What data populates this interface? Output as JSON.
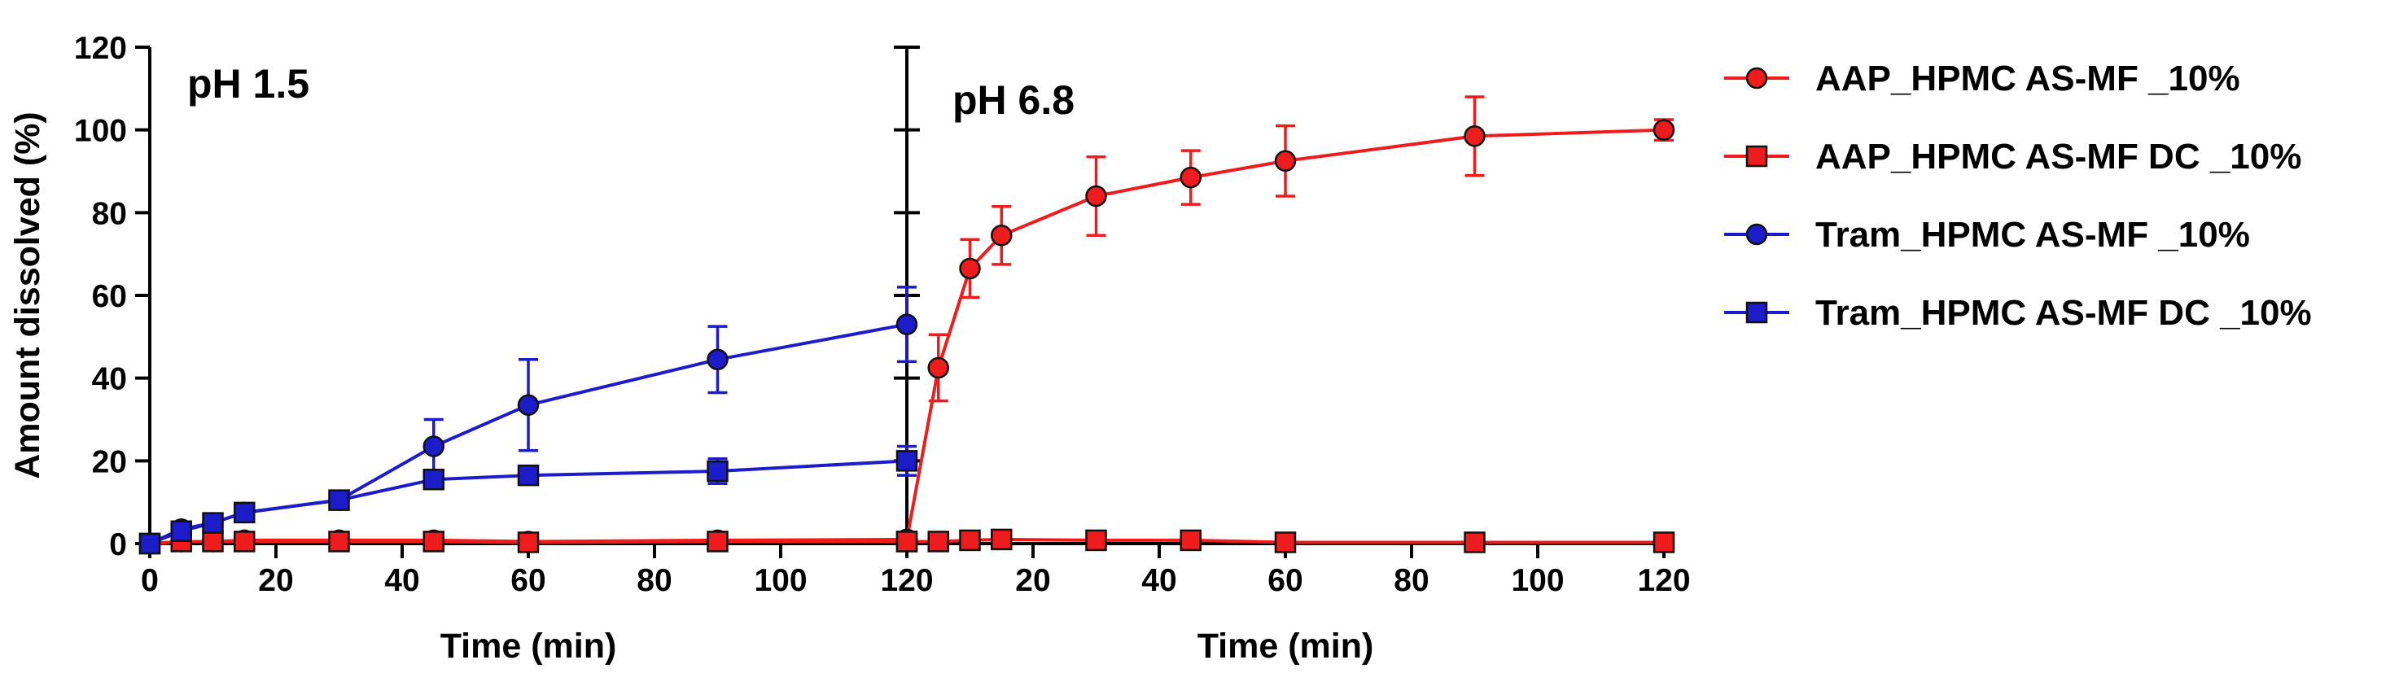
{
  "chart_data": {
    "type": "line",
    "ylabel": "Amount dissolved (%)",
    "ylim": [
      0,
      120
    ],
    "yticks": [
      0,
      20,
      40,
      60,
      80,
      100,
      120
    ],
    "panels": [
      {
        "label": "pH 1.5",
        "xlabel": "Time (min)",
        "xlim": [
          0,
          120
        ],
        "xticks": [
          0,
          20,
          40,
          60,
          80,
          100,
          120
        ]
      },
      {
        "label": "pH 6.8",
        "xlabel": "Time (min)",
        "xlim": [
          0,
          120
        ],
        "xticks": [
          20,
          40,
          60,
          80,
          100,
          120
        ]
      }
    ],
    "series": [
      {
        "name": "AAP_HPMC AS-MF _10%",
        "color": "#ee1c1c",
        "marker": "circle",
        "phases": [
          {
            "x": [
              0,
              5,
              10,
              15,
              30,
              45,
              60,
              90,
              120
            ],
            "y": [
              0,
              0.5,
              0.5,
              0.8,
              0.8,
              0.8,
              0.5,
              0.8,
              1
            ],
            "err": [
              0.5,
              0.5,
              0.5,
              0.5,
              0.5,
              0.5,
              0.5,
              0.5,
              0.5
            ]
          },
          {
            "x": [
              0,
              5,
              10,
              15,
              30,
              45,
              60,
              90,
              120
            ],
            "y": [
              1,
              42.5,
              66.5,
              74.5,
              84,
              88.5,
              92.5,
              98.5,
              100
            ],
            "err": [
              0.5,
              8,
              7,
              7,
              9.5,
              6.5,
              8.5,
              9.5,
              2.5
            ]
          }
        ]
      },
      {
        "name": "AAP_HPMC AS-MF DC _10%",
        "color": "#ee1c1c",
        "marker": "square",
        "phases": [
          {
            "x": [
              0,
              5,
              10,
              15,
              30,
              45,
              60,
              90,
              120
            ],
            "y": [
              0,
              0.5,
              0.5,
              0.5,
              0.5,
              0.5,
              0.3,
              0.5,
              0.5
            ],
            "err": [
              0.5,
              0.5,
              0.5,
              0.5,
              0.5,
              0.5,
              0.5,
              0.5,
              0.5
            ]
          },
          {
            "x": [
              0,
              5,
              10,
              15,
              30,
              45,
              60,
              90,
              120
            ],
            "y": [
              0.5,
              0.5,
              0.8,
              1,
              0.8,
              0.8,
              0.3,
              0.3,
              0.3
            ],
            "err": [
              0.5,
              0.5,
              0.5,
              0.5,
              0.5,
              0.5,
              0.5,
              0.5,
              0.5
            ]
          }
        ]
      },
      {
        "name": "Tram_HPMC AS-MF _10%",
        "color": "#1c1cc8",
        "marker": "circle",
        "phases": [
          {
            "x": [
              0,
              5,
              10,
              15,
              30,
              45,
              60,
              90,
              120
            ],
            "y": [
              0,
              3.5,
              5,
              7.5,
              10.5,
              23.5,
              33.5,
              44.5,
              53
            ],
            "err": [
              0.5,
              0.8,
              1,
              1,
              1.5,
              6.5,
              11,
              8,
              9
            ]
          }
        ]
      },
      {
        "name": "Tram_HPMC AS-MF DC _10%",
        "color": "#1c1cc8",
        "marker": "square",
        "phases": [
          {
            "x": [
              0,
              5,
              10,
              15,
              30,
              45,
              60,
              90,
              120
            ],
            "y": [
              0,
              3,
              5,
              7.5,
              10.5,
              15.5,
              16.5,
              17.5,
              20
            ],
            "err": [
              0.5,
              0.8,
              1,
              1,
              1,
              1.5,
              1.5,
              3,
              3.5
            ]
          }
        ]
      }
    ],
    "legend_position": "right"
  }
}
